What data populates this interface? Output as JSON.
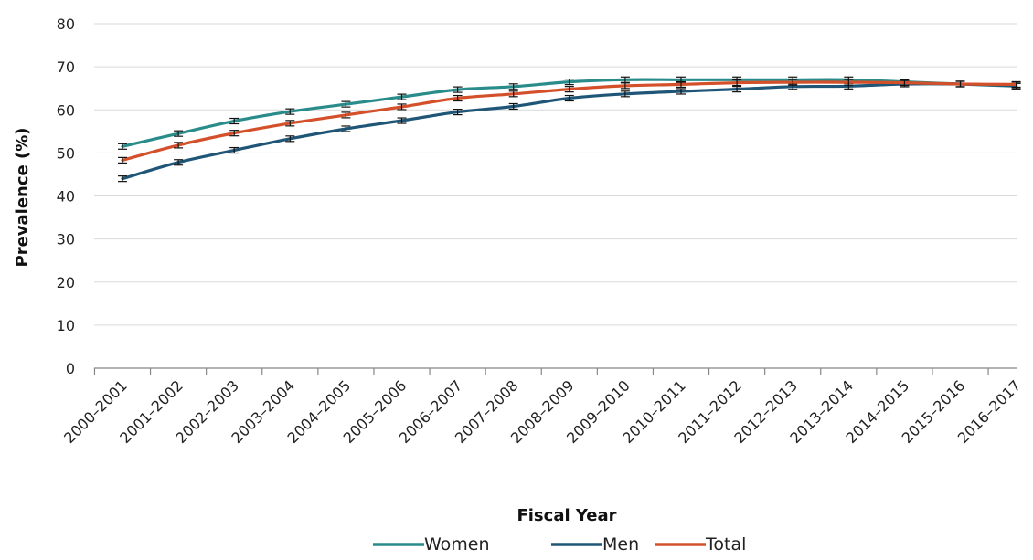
{
  "chart_data": {
    "type": "line",
    "title": "",
    "xlabel": "Fiscal Year",
    "ylabel": "Prevalence (%)",
    "ylim": [
      0,
      80
    ],
    "yticks": [
      0,
      10,
      20,
      30,
      40,
      50,
      60,
      70,
      80
    ],
    "grid": true,
    "legend_position": "bottom",
    "error_bars": true,
    "categories": [
      "2000–2001",
      "2001–2002",
      "2002–2003",
      "2003–2004",
      "2004–2005",
      "2005–2006",
      "2006–2007",
      "2007–2008",
      "2008–2009",
      "2009–2010",
      "2010–2011",
      "2011–2012",
      "2012–2013",
      "2013–2014",
      "2014–2015",
      "2015–2016",
      "2016–2017"
    ],
    "series": [
      {
        "name": "Women",
        "color": "#2a8c8a",
        "values": [
          51.5,
          54.5,
          57.4,
          59.6,
          61.3,
          63.0,
          64.7,
          65.4,
          66.5,
          67.0,
          67.0,
          67.0,
          67.0,
          67.0,
          66.5,
          66.0,
          65.5
        ]
      },
      {
        "name": "Men",
        "color": "#1f5677",
        "values": [
          44.0,
          47.8,
          50.6,
          53.3,
          55.6,
          57.5,
          59.5,
          60.8,
          62.7,
          63.7,
          64.3,
          64.8,
          65.4,
          65.5,
          66.0,
          66.0,
          65.6
        ]
      },
      {
        "name": "Total",
        "color": "#d4502b",
        "values": [
          48.3,
          51.8,
          54.6,
          56.9,
          58.8,
          60.7,
          62.7,
          63.7,
          64.8,
          65.6,
          65.9,
          66.3,
          66.4,
          66.4,
          66.3,
          66.0,
          65.9
        ]
      }
    ]
  }
}
